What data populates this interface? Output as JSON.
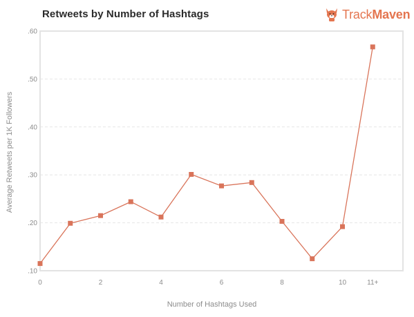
{
  "header": {
    "title": "Retweets by Number of Hashtags",
    "brand_part1": "Track",
    "brand_part2": "Maven",
    "brand_color": "#e4754f",
    "brand_icon": "corgi-logo-icon"
  },
  "chart_data": {
    "type": "line",
    "title": "Retweets by Number of Hashtags",
    "xlabel": "Number of Hashtags Used",
    "ylabel": "Average Retweets per 1K Followers",
    "x": [
      0,
      1,
      2,
      3,
      4,
      5,
      6,
      7,
      8,
      9,
      10,
      "11+"
    ],
    "x_tick_labels": [
      "0",
      "2",
      "4",
      "6",
      "8",
      "10",
      "11+"
    ],
    "x_tick_positions": [
      0,
      2,
      4,
      6,
      8,
      10,
      11
    ],
    "y_tick_labels": [
      ".10",
      ".20",
      ".30",
      ".40",
      ".50",
      ".60"
    ],
    "y_tick_values": [
      0.1,
      0.2,
      0.3,
      0.4,
      0.5,
      0.6
    ],
    "ylim": [
      0.1,
      0.6
    ],
    "xlim": [
      0,
      12
    ],
    "grid": true,
    "series": [
      {
        "values": [
          0.115,
          0.199,
          0.215,
          0.244,
          0.212,
          0.301,
          0.277,
          0.284,
          0.203,
          0.125,
          0.192,
          0.567
        ]
      }
    ],
    "line_color": "#d9745a",
    "marker_color": "#d9745a",
    "grid_color": "#e6e6e6",
    "frame_color": "#e3e3e3"
  }
}
